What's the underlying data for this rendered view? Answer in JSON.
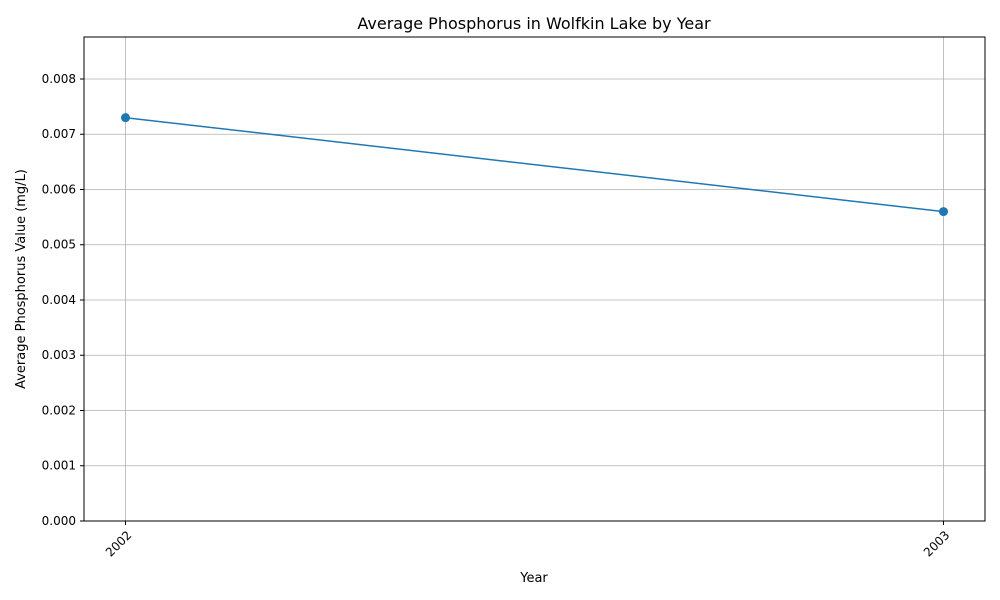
{
  "chart_data": {
    "type": "line",
    "title": "Average Phosphorus in Wolfkin Lake by Year",
    "xlabel": "Year",
    "ylabel": "Average Phosphorus Value (mg/L)",
    "categories": [
      "2002",
      "2003"
    ],
    "series": [
      {
        "values": [
          0.0073,
          0.0056
        ],
        "color": "#1f77b4",
        "marker": "circle"
      }
    ],
    "ylim": [
      0,
      0.00876
    ],
    "yticks": [
      "0.000",
      "0.001",
      "0.002",
      "0.003",
      "0.004",
      "0.005",
      "0.006",
      "0.007",
      "0.008"
    ],
    "grid": true
  }
}
